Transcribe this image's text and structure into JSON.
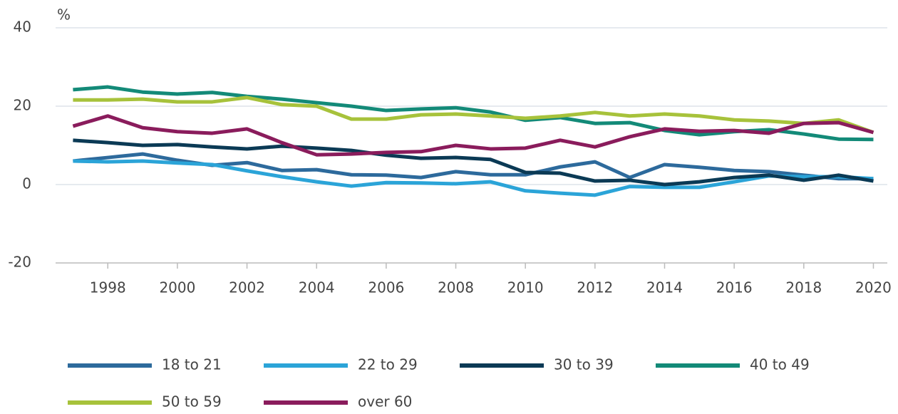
{
  "chart_data": {
    "type": "line",
    "y_label": "%",
    "x": [
      1997,
      1998,
      1999,
      2000,
      2001,
      2002,
      2003,
      2004,
      2005,
      2006,
      2007,
      2008,
      2009,
      2010,
      2011,
      2012,
      2013,
      2014,
      2015,
      2016,
      2017,
      2018,
      2019,
      2020
    ],
    "xlim": [
      1996.5,
      2020.4
    ],
    "xticks": [
      1998,
      2000,
      2002,
      2004,
      2006,
      2008,
      2010,
      2012,
      2014,
      2016,
      2018,
      2020
    ],
    "ylim": [
      -20,
      40
    ],
    "yticks": [
      -20,
      0,
      20,
      40
    ],
    "grid": true,
    "legend": "bottom",
    "series": [
      {
        "name": "18 to 21",
        "color": "#2d6a9c",
        "values": [
          6.0,
          6.9,
          7.8,
          6.2,
          4.9,
          5.6,
          3.6,
          3.8,
          2.5,
          2.4,
          1.8,
          3.3,
          2.5,
          2.5,
          4.5,
          5.8,
          1.8,
          5.1,
          4.4,
          3.6,
          3.3,
          2.4,
          1.5,
          1.5
        ]
      },
      {
        "name": "22 to 29",
        "color": "#2ba4d8",
        "values": [
          6.0,
          5.8,
          6.0,
          5.5,
          5.1,
          3.5,
          2.0,
          0.7,
          -0.4,
          0.5,
          0.4,
          0.2,
          0.7,
          -1.6,
          -2.2,
          -2.7,
          -0.5,
          -0.7,
          -0.7,
          0.7,
          2.2,
          2.0,
          2.0,
          1.5
        ]
      },
      {
        "name": "30 to 39",
        "color": "#0b3a55",
        "values": [
          11.3,
          10.7,
          10.0,
          10.2,
          9.6,
          9.1,
          9.8,
          9.3,
          8.7,
          7.5,
          6.7,
          6.9,
          6.4,
          3.1,
          2.9,
          0.9,
          1.1,
          0.0,
          0.7,
          1.8,
          2.4,
          1.1,
          2.4,
          0.9
        ]
      },
      {
        "name": "40 to 49",
        "color": "#138a78",
        "values": [
          24.2,
          24.9,
          23.6,
          23.1,
          23.5,
          22.5,
          21.8,
          20.9,
          20.0,
          18.9,
          19.3,
          19.6,
          18.5,
          16.4,
          17.1,
          15.6,
          15.8,
          13.8,
          12.7,
          13.5,
          14.0,
          12.9,
          11.6,
          11.5
        ]
      },
      {
        "name": "50 to 59",
        "color": "#a7c23b",
        "values": [
          21.6,
          21.6,
          21.8,
          21.1,
          21.1,
          22.2,
          20.4,
          20.0,
          16.7,
          16.7,
          17.8,
          18.0,
          17.5,
          16.9,
          17.5,
          18.4,
          17.5,
          18.0,
          17.5,
          16.5,
          16.2,
          15.6,
          16.5,
          13.3
        ]
      },
      {
        "name": "over 60",
        "color": "#8a1c5c",
        "values": [
          14.9,
          17.5,
          14.5,
          13.5,
          13.1,
          14.2,
          10.7,
          7.6,
          7.8,
          8.2,
          8.4,
          10.0,
          9.1,
          9.3,
          11.3,
          9.6,
          12.2,
          14.2,
          13.6,
          13.8,
          13.1,
          15.6,
          15.8,
          13.3
        ]
      }
    ]
  }
}
